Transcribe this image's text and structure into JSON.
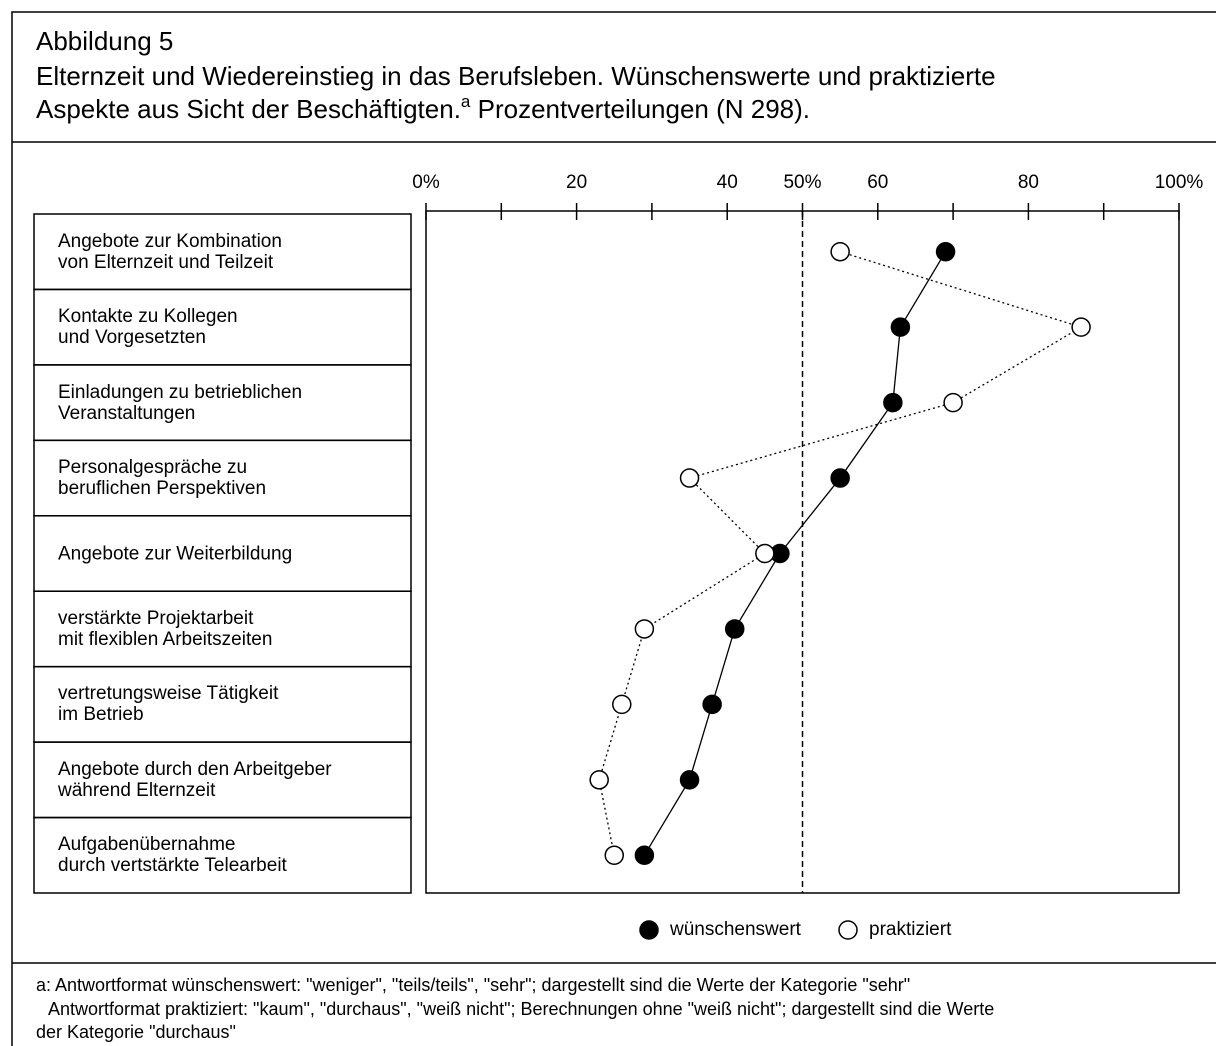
{
  "chart_data": {
    "type": "dot",
    "figure_label": "Abbildung 5",
    "title": "Elternzeit und Wiedereinstieg in das Berufsleben. Wünschenswerte und praktizierte\nAspekte aus Sicht der Beschäftigten.",
    "title_superscript": "a",
    "title_end": " Prozentverteilungen (N 298).",
    "categories": [
      "Angebote zur Kombination\nvon Elternzeit und Teilzeit",
      "Kontakte zu Kollegen\nund Vorgesetzten",
      "Einladungen zu betrieblichen\nVeranstaltungen",
      "Personalgespräche zu\nberuflichen Perspektiven",
      "Angebote zur Weiterbildung",
      "verstärkte Projektarbeit\nmit flexiblen Arbeitszeiten",
      "vertretungsweise Tätigkeit\nim Betrieb",
      "Angebote durch den Arbeitgeber\nwährend Elternzeit",
      "Aufgabenübernahme\ndurch vertstärkte Telearbeit"
    ],
    "series": [
      {
        "name": "wünschenswert",
        "color": "#000000",
        "fill": "#000000",
        "line": "solid",
        "values": [
          69,
          63,
          62,
          55,
          47,
          41,
          38,
          35,
          29
        ]
      },
      {
        "name": "praktiziert",
        "color": "#000000",
        "fill": "#ffffff",
        "line": "dotted",
        "values": [
          55,
          87,
          70,
          35,
          45,
          29,
          26,
          23,
          25
        ]
      }
    ],
    "xlim": [
      0,
      100
    ],
    "xticks": [
      {
        "value": 0,
        "label": "0%"
      },
      20,
      40,
      {
        "value": 50,
        "label": "50%"
      },
      60,
      80,
      {
        "value": 100,
        "label": "100%"
      }
    ],
    "minor_xticks": [
      10,
      30,
      70,
      90
    ],
    "reference_line": 50,
    "notes": [
      "a: Antwortformat wünschenswert: \"weniger\", \"teils/teils\", \"sehr\"; dargestellt sind die Werte der Kategorie \"sehr\"",
      "Antwortformat praktiziert: \"kaum\", \"durchaus\", \"weiß nicht\"; Berechnungen ohne \"weiß nicht\"; dargestellt sind die Werte",
      "der Kategorie \"durchaus\""
    ]
  }
}
